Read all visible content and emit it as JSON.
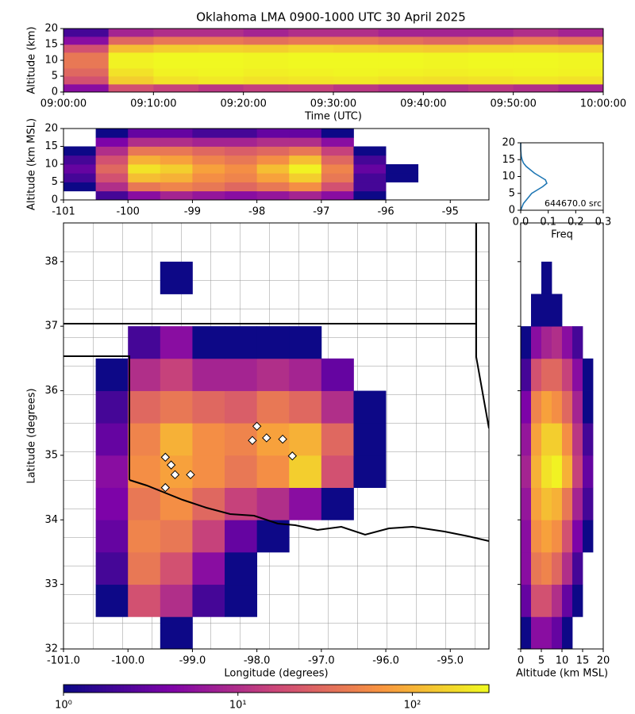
{
  "chart_data": [
    {
      "type": "heatmap",
      "title": "Oklahoma LMA 0900-1000 UTC 30 April 2025",
      "xlabel": "Time (UTC)",
      "ylabel": "Altitude (km)",
      "xlim": [
        0,
        60
      ],
      "ylim": [
        0,
        20
      ],
      "xticks": [
        {
          "value": 0,
          "label": "09:00:00"
        },
        {
          "value": 10,
          "label": "09:10:00"
        },
        {
          "value": 20,
          "label": "09:20:00"
        },
        {
          "value": 30,
          "label": "09:30:00"
        },
        {
          "value": 40,
          "label": "09:40:00"
        },
        {
          "value": 50,
          "label": "09:50:00"
        },
        {
          "value": 60,
          "label": "10:00:00"
        }
      ],
      "yticks": [
        0,
        5,
        10,
        15,
        20
      ],
      "xbins": [
        0,
        5,
        10,
        15,
        20,
        25,
        30,
        35,
        40,
        45,
        50,
        55,
        60
      ],
      "ybins": [
        0,
        2.5,
        5,
        7.5,
        10,
        12.5,
        15,
        17.5,
        20
      ],
      "z": [
        [
          5,
          20,
          15,
          12,
          14,
          15,
          12,
          10,
          10,
          12,
          10,
          8
        ],
        [
          20,
          150,
          200,
          220,
          200,
          210,
          220,
          200,
          190,
          200,
          210,
          200
        ],
        [
          30,
          200,
          250,
          260,
          240,
          250,
          260,
          250,
          240,
          250,
          260,
          250
        ],
        [
          40,
          250,
          270,
          270,
          260,
          270,
          270,
          270,
          260,
          270,
          270,
          260
        ],
        [
          40,
          250,
          270,
          270,
          260,
          270,
          270,
          270,
          260,
          270,
          270,
          260
        ],
        [
          20,
          120,
          150,
          160,
          150,
          170,
          160,
          150,
          140,
          150,
          160,
          150
        ],
        [
          5,
          30,
          40,
          40,
          35,
          40,
          40,
          35,
          30,
          35,
          40,
          35
        ],
        [
          2,
          8,
          10,
          10,
          8,
          10,
          10,
          8,
          8,
          8,
          10,
          8
        ]
      ]
    },
    {
      "type": "heatmap",
      "ylabel": "Altitude (km MSL)",
      "xlim": [
        -101,
        -94.4
      ],
      "ylim": [
        0,
        20
      ],
      "xticks": [
        -101,
        -100,
        -99,
        -98,
        -97,
        -96,
        -95
      ],
      "yticks": [
        0,
        5,
        10,
        15,
        20
      ],
      "xbins": [
        -101,
        -100.5,
        -100,
        -99.5,
        -99,
        -98.5,
        -98,
        -97.5,
        -97,
        -96.5,
        -96,
        -95.5,
        -95,
        -94.5
      ],
      "ybins": [
        0,
        2.5,
        5,
        7.5,
        10,
        12.5,
        15,
        17.5,
        20
      ],
      "z": [
        [
          0,
          2,
          5,
          8,
          6,
          5,
          6,
          8,
          5,
          1,
          0,
          0,
          0
        ],
        [
          1,
          10,
          40,
          50,
          40,
          30,
          40,
          60,
          20,
          2,
          0,
          0,
          0
        ],
        [
          2,
          20,
          120,
          100,
          60,
          50,
          80,
          150,
          40,
          2,
          1,
          0,
          0
        ],
        [
          3,
          30,
          200,
          150,
          80,
          60,
          120,
          250,
          50,
          3,
          1,
          0,
          0
        ],
        [
          2,
          20,
          100,
          80,
          50,
          40,
          60,
          120,
          30,
          2,
          0,
          0,
          0
        ],
        [
          1,
          10,
          40,
          40,
          30,
          25,
          30,
          40,
          15,
          1,
          0,
          0,
          0
        ],
        [
          0,
          4,
          10,
          10,
          8,
          8,
          10,
          10,
          5,
          0,
          0,
          0,
          0
        ],
        [
          0,
          1,
          3,
          3,
          2,
          2,
          3,
          3,
          1,
          0,
          0,
          0,
          0
        ]
      ]
    },
    {
      "type": "line",
      "orientation": "horizontal",
      "xlabel": "Freq",
      "annotation": "644670.0 src",
      "color": "#1f77b4",
      "xlim": [
        0,
        0.3
      ],
      "ylim": [
        0,
        20
      ],
      "xticks": [
        {
          "value": 0,
          "label": "0.0"
        },
        0.1,
        0.2,
        0.3
      ],
      "yticks": [
        0,
        5,
        10,
        15,
        20
      ],
      "y": [
        0,
        1,
        2,
        3,
        4,
        5,
        6,
        7,
        8,
        9,
        10,
        11,
        12,
        13,
        14,
        15,
        16,
        17,
        18,
        19,
        20
      ],
      "values": [
        0,
        0.005,
        0.01,
        0.02,
        0.03,
        0.04,
        0.06,
        0.08,
        0.095,
        0.09,
        0.07,
        0.05,
        0.035,
        0.02,
        0.01,
        0.005,
        0.002,
        0.001,
        0,
        0,
        0
      ]
    },
    {
      "type": "heatmap",
      "xlabel": "Longitude (degrees)",
      "ylabel": "Latitude (degrees)",
      "xlim": [
        -101,
        -94.4
      ],
      "ylim": [
        32,
        38.6
      ],
      "xticks": [
        {
          "value": -101,
          "label": "-101.0"
        },
        {
          "value": -100,
          "label": "-100.0"
        },
        {
          "value": -99,
          "label": "-99.0"
        },
        {
          "value": -98,
          "label": "-98.0"
        },
        {
          "value": -97,
          "label": "-97.0"
        },
        {
          "value": -96,
          "label": "-96.0"
        },
        {
          "value": -95,
          "label": "-95.0"
        }
      ],
      "yticks": [
        32,
        33,
        34,
        35,
        36,
        37,
        38
      ],
      "xbins": [
        -101,
        -100.5,
        -100,
        -99.5,
        -99,
        -98.5,
        -98,
        -97.5,
        -97,
        -96.5,
        -96,
        -95.5,
        -95,
        -94.5
      ],
      "ybins": [
        32,
        32.5,
        33,
        33.5,
        34,
        34.5,
        35,
        35.5,
        36,
        36.5,
        37,
        37.5,
        38,
        38.5
      ],
      "z": [
        [
          0,
          0,
          0,
          1,
          0,
          0,
          0,
          0,
          0,
          0,
          0,
          0,
          0
        ],
        [
          0,
          1,
          20,
          10,
          2,
          1,
          0,
          0,
          0,
          0,
          0,
          0,
          0
        ],
        [
          0,
          2,
          40,
          20,
          5,
          1,
          0,
          0,
          0,
          0,
          0,
          0,
          0
        ],
        [
          0,
          3,
          50,
          40,
          15,
          3,
          1,
          0,
          0,
          0,
          0,
          0,
          0
        ],
        [
          0,
          4,
          40,
          60,
          30,
          15,
          10,
          5,
          1,
          0,
          0,
          0,
          0
        ],
        [
          0,
          5,
          60,
          80,
          60,
          40,
          60,
          150,
          20,
          1,
          0,
          0,
          0
        ],
        [
          0,
          3,
          50,
          100,
          60,
          50,
          80,
          100,
          30,
          1,
          0,
          0,
          0
        ],
        [
          0,
          2,
          30,
          40,
          30,
          25,
          40,
          30,
          10,
          1,
          0,
          0,
          0
        ],
        [
          0,
          1,
          10,
          15,
          8,
          8,
          10,
          8,
          3,
          0,
          0,
          0,
          0
        ],
        [
          0,
          0,
          2,
          5,
          1,
          1,
          1,
          1,
          0,
          0,
          0,
          0,
          0
        ],
        [
          0,
          0,
          0,
          0,
          0,
          0,
          0,
          0,
          0,
          0,
          0,
          0,
          0
        ],
        [
          0,
          0,
          0,
          1,
          0,
          0,
          0,
          0,
          0,
          0,
          0,
          0,
          0
        ],
        [
          0,
          0,
          0,
          0,
          0,
          0,
          0,
          0,
          0,
          0,
          0,
          0,
          0
        ]
      ],
      "points": {
        "color": "#ffffff",
        "x": [
          -99.42,
          -99.33,
          -99.27,
          -99.03,
          -99.42,
          -98.0,
          -98.07,
          -97.85,
          -97.6,
          -97.45
        ],
        "y": [
          34.97,
          34.85,
          34.7,
          34.7,
          34.5,
          35.45,
          35.23,
          35.27,
          35.25,
          34.99
        ]
      }
    },
    {
      "type": "heatmap",
      "xlabel": "Altitude (km MSL)",
      "ytick_labels": false,
      "xlim": [
        0,
        20
      ],
      "ylim": [
        32,
        38.6
      ],
      "xticks": [
        0,
        5,
        10,
        15,
        20
      ],
      "yticks": [
        32,
        33,
        34,
        35,
        36,
        37,
        38
      ],
      "xbins": [
        0,
        2.5,
        5,
        7.5,
        10,
        12.5,
        15,
        17.5,
        20
      ],
      "ybins": [
        32,
        32.5,
        33,
        33.5,
        34,
        34.5,
        35,
        35.5,
        36,
        36.5,
        37,
        37.5,
        38,
        38.5
      ],
      "z": [
        [
          1,
          5,
          5,
          3,
          1,
          0,
          0,
          0
        ],
        [
          3,
          20,
          20,
          10,
          3,
          1,
          0,
          0
        ],
        [
          5,
          40,
          50,
          30,
          10,
          2,
          0,
          0
        ],
        [
          5,
          60,
          80,
          60,
          20,
          4,
          1,
          0
        ],
        [
          6,
          80,
          120,
          100,
          40,
          8,
          2,
          0
        ],
        [
          8,
          100,
          200,
          250,
          100,
          15,
          3,
          0
        ],
        [
          6,
          80,
          150,
          150,
          60,
          12,
          2,
          0
        ],
        [
          4,
          50,
          80,
          60,
          30,
          8,
          1,
          0
        ],
        [
          2,
          20,
          30,
          30,
          15,
          5,
          1,
          0
        ],
        [
          1,
          5,
          8,
          10,
          5,
          2,
          0,
          0
        ],
        [
          0,
          1,
          1,
          1,
          0,
          0,
          0,
          0
        ],
        [
          0,
          0,
          1,
          0,
          0,
          0,
          0,
          0
        ],
        [
          0,
          0,
          0,
          0,
          0,
          0,
          0,
          0
        ]
      ]
    },
    {
      "type": "colorbar",
      "colormap": "plasma",
      "log": true,
      "clim": [
        1,
        275
      ],
      "ticks": [
        {
          "value": 1,
          "label": "10⁰"
        },
        {
          "value": 10,
          "label": "10¹"
        },
        {
          "value": 100,
          "label": "10²"
        }
      ]
    }
  ]
}
